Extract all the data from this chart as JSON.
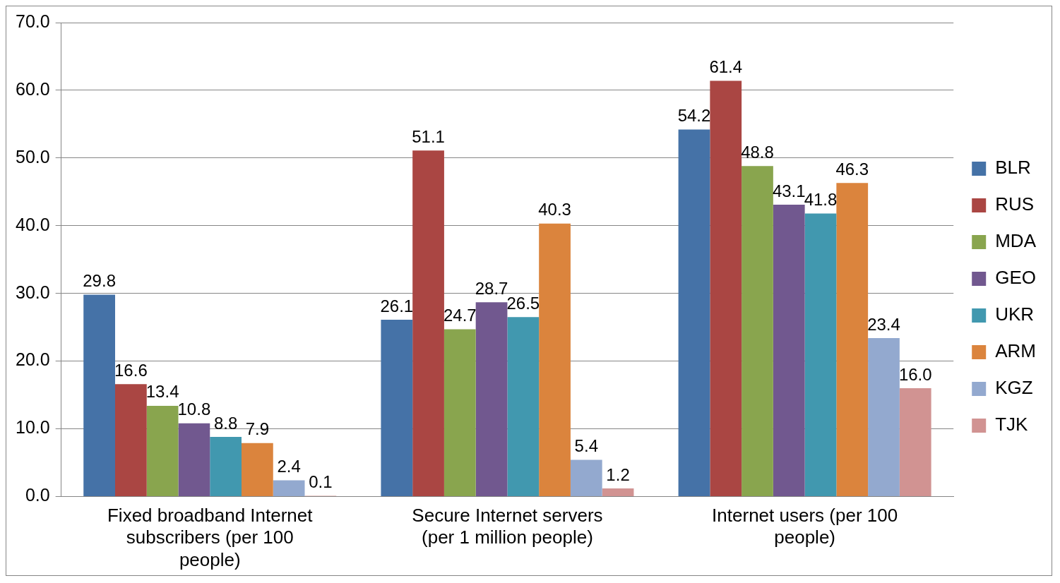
{
  "chart_data": {
    "type": "bar",
    "categories": [
      "Fixed broadband Internet subscribers (per 100 people)",
      "Secure Internet servers (per 1 million people)",
      "Internet users (per 100 people)"
    ],
    "series": [
      {
        "name": "BLR",
        "color": "#4572a7",
        "values": [
          29.8,
          26.1,
          54.2
        ],
        "value_labels": [
          "29.8",
          "26.1",
          "54.2"
        ]
      },
      {
        "name": "RUS",
        "color": "#aa4643",
        "values": [
          16.6,
          51.1,
          61.4
        ],
        "value_labels": [
          "16.6",
          "51.1",
          "61.4"
        ]
      },
      {
        "name": "MDA",
        "color": "#89a54e",
        "values": [
          13.4,
          24.7,
          48.8
        ],
        "value_labels": [
          "13.4",
          "24.7",
          "48.8"
        ]
      },
      {
        "name": "GEO",
        "color": "#71588f",
        "values": [
          10.8,
          28.7,
          43.1
        ],
        "value_labels": [
          "10.8",
          "28.7",
          "43.1"
        ]
      },
      {
        "name": "UKR",
        "color": "#4198af",
        "values": [
          8.8,
          26.5,
          41.8
        ],
        "value_labels": [
          "8.8",
          "26.5",
          "41.8"
        ]
      },
      {
        "name": "ARM",
        "color": "#db843d",
        "values": [
          7.9,
          40.3,
          46.3
        ],
        "value_labels": [
          "7.9",
          "40.3",
          "46.3"
        ]
      },
      {
        "name": "KGZ",
        "color": "#93a9cf",
        "values": [
          2.4,
          5.4,
          23.4
        ],
        "value_labels": [
          "2.4",
          "5.4",
          "23.4"
        ]
      },
      {
        "name": "TJK",
        "color": "#d19392",
        "values": [
          0.1,
          1.2,
          16.0
        ],
        "value_labels": [
          "0.1",
          "1.2",
          "16.0"
        ]
      }
    ],
    "ylim": [
      0,
      70
    ],
    "yticks": [
      {
        "value": 0,
        "label": "0.0"
      },
      {
        "value": 10,
        "label": "10.0"
      },
      {
        "value": 20,
        "label": "20.0"
      },
      {
        "value": 30,
        "label": "30.0"
      },
      {
        "value": 40,
        "label": "40.0"
      },
      {
        "value": 50,
        "label": "50.0"
      },
      {
        "value": 60,
        "label": "60.0"
      },
      {
        "value": 70,
        "label": "70.0"
      }
    ],
    "grid": "y",
    "legend": "right"
  }
}
